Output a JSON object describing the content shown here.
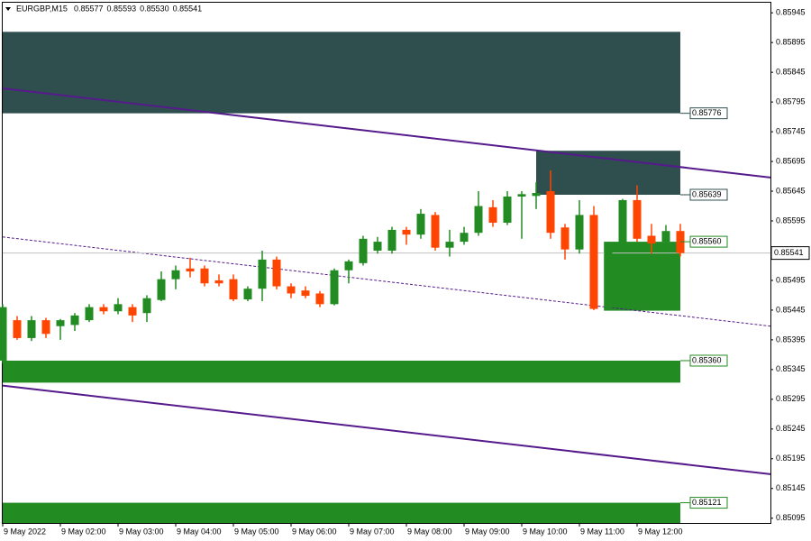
{
  "chart_data": {
    "type": "candlestick",
    "symbol": "EURGBP,M15",
    "header_ohlc": [
      0.85577,
      0.85593,
      0.8553,
      0.85541
    ],
    "header_ohlc_labels": [
      "0.85577",
      "0.85593",
      "0.85530",
      "0.85541"
    ],
    "categories": [
      "9 May 2022",
      null,
      null,
      null,
      "9 May 02:00",
      null,
      null,
      null,
      "9 May 03:00",
      null,
      null,
      null,
      "9 May 04:00",
      null,
      null,
      null,
      "9 May 05:00",
      null,
      null,
      null,
      "9 May 06:00",
      null,
      null,
      null,
      "9 May 07:00",
      null,
      null,
      null,
      "9 May 08:00",
      null,
      null,
      null,
      "9 May 09:00",
      null,
      null,
      null,
      "9 May 10:00",
      null,
      null,
      null,
      "9 May 11:00",
      null,
      null,
      null,
      "9 May 12:00",
      null,
      null,
      null
    ],
    "open": [
      0.8536,
      0.85428,
      0.85398,
      0.85428,
      0.85418,
      0.8542,
      0.85428,
      0.8545,
      0.85443,
      0.8545,
      0.8544,
      0.85462,
      0.85497,
      0.85515,
      0.85515,
      0.85495,
      0.85497,
      0.85463,
      0.85481,
      0.8553,
      0.85485,
      0.85478,
      0.85473,
      0.85455,
      0.85512,
      0.85524,
      0.85545,
      0.85545,
      0.8558,
      0.85572,
      0.85605,
      0.8555,
      0.8556,
      0.85575,
      0.85618,
      0.85592,
      0.85636,
      0.85637,
      0.85645,
      0.85584,
      0.85547,
      0.85605,
      0.85447,
      0.85557,
      0.8563,
      0.8557,
      0.8556,
      0.85578
    ],
    "high": [
      0.85455,
      0.85435,
      0.85435,
      0.85432,
      0.8543,
      0.8544,
      0.85455,
      0.85455,
      0.85465,
      0.85455,
      0.8547,
      0.8551,
      0.8552,
      0.85533,
      0.8552,
      0.85505,
      0.85505,
      0.85485,
      0.85545,
      0.85535,
      0.8549,
      0.85485,
      0.85477,
      0.85515,
      0.8553,
      0.8557,
      0.85568,
      0.85585,
      0.85585,
      0.85615,
      0.8561,
      0.8558,
      0.85585,
      0.85645,
      0.8563,
      0.85645,
      0.85645,
      0.8566,
      0.8568,
      0.8559,
      0.8563,
      0.8562,
      0.8556,
      0.85632,
      0.85655,
      0.8559,
      0.85588,
      0.8559
    ],
    "low": [
      0.85355,
      0.85395,
      0.85393,
      0.85398,
      0.85395,
      0.8541,
      0.85425,
      0.85438,
      0.85438,
      0.85425,
      0.85425,
      0.8546,
      0.8548,
      0.855,
      0.85485,
      0.85485,
      0.8546,
      0.8546,
      0.8546,
      0.8548,
      0.85465,
      0.85465,
      0.8545,
      0.85453,
      0.8549,
      0.8552,
      0.8554,
      0.8554,
      0.85555,
      0.85565,
      0.85545,
      0.85535,
      0.85555,
      0.8557,
      0.85585,
      0.85588,
      0.85565,
      0.85615,
      0.85565,
      0.8553,
      0.8554,
      0.85445,
      0.85445,
      0.8555,
      0.8556,
      0.8554,
      0.85545,
      0.85535
    ],
    "close": [
      0.8545,
      0.85398,
      0.85428,
      0.85405,
      0.85428,
      0.85436,
      0.8545,
      0.85443,
      0.85455,
      0.85436,
      0.85465,
      0.85497,
      0.85512,
      0.8551,
      0.8549,
      0.8549,
      0.85463,
      0.85481,
      0.8553,
      0.85485,
      0.85473,
      0.85469,
      0.85455,
      0.85512,
      0.85527,
      0.85565,
      0.8556,
      0.8558,
      0.85572,
      0.85607,
      0.8555,
      0.8556,
      0.85575,
      0.8562,
      0.85592,
      0.85636,
      0.8564,
      0.85642,
      0.85575,
      0.85547,
      0.85605,
      0.85447,
      0.85557,
      0.8563,
      0.85565,
      0.85557,
      0.85578,
      0.85541
    ],
    "up_color": "#228b22",
    "down_color": "#ff4500",
    "ylim": [
      0.85087,
      0.85962
    ],
    "yticks": [
      {
        "value": 0.85945,
        "label": "0.85945"
      },
      {
        "value": 0.85895,
        "label": "0.85895"
      },
      {
        "value": 0.85845,
        "label": "0.85845"
      },
      {
        "value": 0.85795,
        "label": "0.85795"
      },
      {
        "value": 0.85745,
        "label": "0.85745"
      },
      {
        "value": 0.85695,
        "label": "0.85695"
      },
      {
        "value": 0.85645,
        "label": "0.85645"
      },
      {
        "value": 0.85595,
        "label": "0.85595"
      },
      {
        "value": 0.85545,
        "label": "0.85545"
      },
      {
        "value": 0.85495,
        "label": "0.85495"
      },
      {
        "value": 0.85445,
        "label": "0.85445"
      },
      {
        "value": 0.85395,
        "label": "0.85395"
      },
      {
        "value": 0.85345,
        "label": "0.85345"
      },
      {
        "value": 0.85295,
        "label": "0.85295"
      },
      {
        "value": 0.85245,
        "label": "0.85245"
      },
      {
        "value": 0.85195,
        "label": "0.85195"
      },
      {
        "value": 0.85145,
        "label": "0.85145"
      },
      {
        "value": 0.85095,
        "label": "0.85095"
      }
    ],
    "current_price": {
      "value": 0.85541,
      "label": "0.85541"
    },
    "zones": [
      {
        "start": 0,
        "top": 0.85913,
        "bottom": 0.85776,
        "bottom_label": "0.85776",
        "label_edge": "bottom",
        "color": "#2f4f4f"
      },
      {
        "start": 37,
        "top": 0.85713,
        "bottom": 0.85639,
        "bottom_label": "0.85639",
        "label_edge": "bottom",
        "color": "#2f4f4f"
      },
      {
        "start": 41.7,
        "top": 0.8556,
        "bottom": 0.85444,
        "top_label": "0.85560",
        "label_edge": "top",
        "color": "#228b22"
      },
      {
        "start": 0,
        "top": 0.8536,
        "bottom": 0.85323,
        "top_label": "0.85360",
        "label_edge": "top",
        "color": "#228b22"
      },
      {
        "start": 0,
        "top": 0.85121,
        "bottom": 0.85087,
        "top_label": "0.85121",
        "label_edge": "top",
        "color": "#228b22"
      }
    ],
    "trendlines": [
      {
        "values": [
          0.85818,
          0.85668
        ],
        "color": "#551a8b",
        "dashed": false
      },
      {
        "values": [
          0.85568,
          0.85418
        ],
        "color": "#551a8b",
        "dashed": true
      },
      {
        "values": [
          0.85318,
          0.85169
        ],
        "color": "#551a8b",
        "dashed": false
      }
    ]
  }
}
